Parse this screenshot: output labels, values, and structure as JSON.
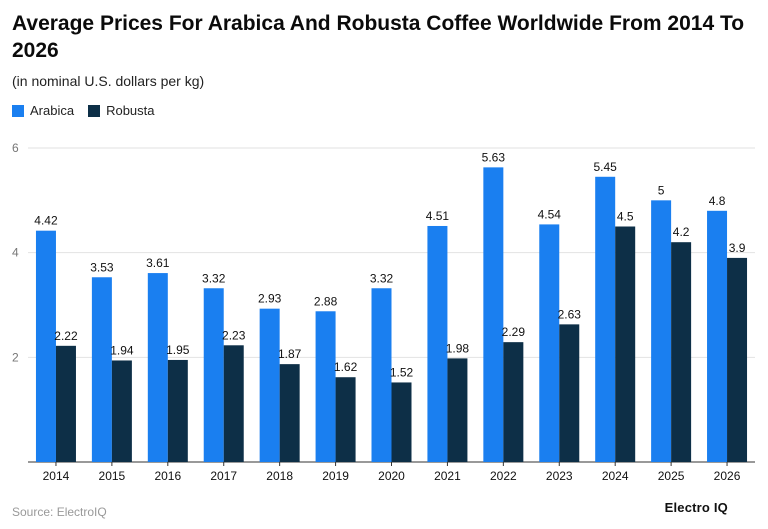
{
  "chart_data": {
    "type": "bar",
    "title": "Average Prices For Arabica And Robusta Coffee Worldwide From 2014 To 2026",
    "subtitle": "(in nominal U.S. dollars per kg)",
    "xlabel": "",
    "ylabel": "",
    "categories": [
      "2014",
      "2015",
      "2016",
      "2017",
      "2018",
      "2019",
      "2020",
      "2021",
      "2022",
      "2023",
      "2024",
      "2025",
      "2026"
    ],
    "series": [
      {
        "name": "Arabica",
        "color": "#1a7ff0",
        "values": [
          4.42,
          3.53,
          3.61,
          3.32,
          2.93,
          2.88,
          3.32,
          4.51,
          5.63,
          4.54,
          5.45,
          5,
          4.8
        ]
      },
      {
        "name": "Robusta",
        "color": "#0d2f47",
        "values": [
          2.22,
          1.94,
          1.95,
          2.23,
          1.87,
          1.62,
          1.52,
          1.98,
          2.29,
          2.63,
          4.5,
          4.2,
          3.9
        ]
      }
    ],
    "ylim": [
      0,
      6
    ],
    "yticks": [
      2,
      4,
      6
    ],
    "grid": true,
    "legend": "top-left"
  },
  "footer": {
    "source": "Source: ElectroIQ",
    "brand": "Electro IQ"
  }
}
